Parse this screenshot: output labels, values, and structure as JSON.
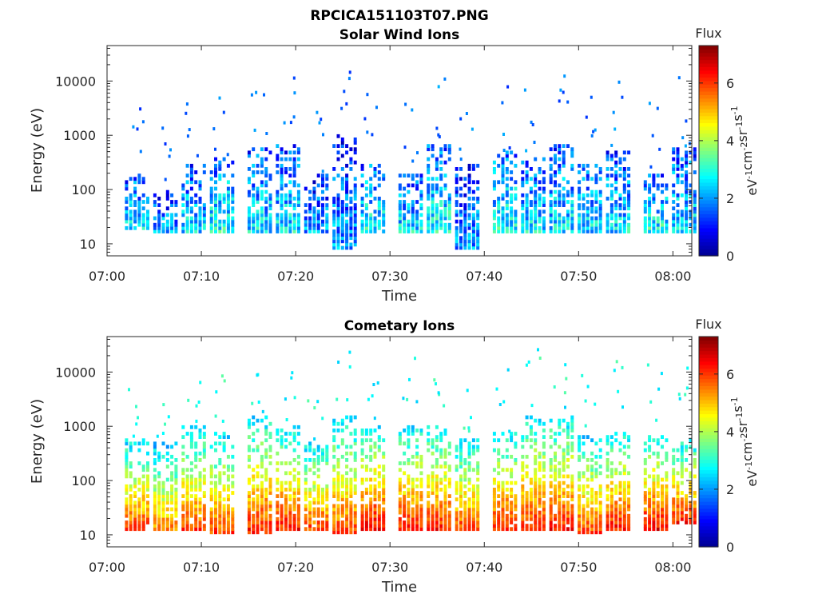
{
  "figure": {
    "title": "RPCICA151103T07.PNG"
  },
  "colorbar": {
    "title": "Flux",
    "unit_base": "eV",
    "ticks": [
      "0",
      "2",
      "4",
      "6"
    ],
    "range": [
      0,
      7.3
    ],
    "colormap": [
      "#00008f",
      "#0000ff",
      "#0080ff",
      "#00ffff",
      "#80ff80",
      "#ffff00",
      "#ff8000",
      "#ff0000",
      "#800000"
    ]
  },
  "chart_data": [
    {
      "type": "heatmap",
      "title": "Solar Wind Ions",
      "xlabel": "Time",
      "ylabel": "Energy (eV)",
      "x_ticks": [
        "07:00",
        "07:10",
        "07:20",
        "07:30",
        "07:40",
        "07:50",
        "08:00"
      ],
      "xlim": [
        "07:00",
        "08:02"
      ],
      "y_scale": "log",
      "y_ticks": [
        10,
        100,
        1000,
        10000
      ],
      "y_tick_labels": [
        "10",
        "100",
        "1000",
        "10000"
      ],
      "ylim": [
        6,
        45000
      ],
      "grid": false,
      "bursts": [
        {
          "t": "07:03",
          "emin": 18,
          "emax": 200,
          "flux": 3.5
        },
        {
          "t": "07:06",
          "emin": 15,
          "emax": 100,
          "flux": 3.0
        },
        {
          "t": "07:09",
          "emin": 15,
          "emax": 300,
          "flux": 3.5
        },
        {
          "t": "07:12",
          "emin": 15,
          "emax": 400,
          "flux": 3.8
        },
        {
          "t": "07:16",
          "emin": 15,
          "emax": 600,
          "flux": 3.5
        },
        {
          "t": "07:19",
          "emin": 15,
          "emax": 700,
          "flux": 3.5
        },
        {
          "t": "07:22",
          "emin": 15,
          "emax": 200,
          "flux": 3.0
        },
        {
          "t": "07:25",
          "emin": 8,
          "emax": 1000,
          "flux": 3.0
        },
        {
          "t": "07:28",
          "emin": 15,
          "emax": 300,
          "flux": 3.8
        },
        {
          "t": "07:32",
          "emin": 15,
          "emax": 200,
          "flux": 3.5
        },
        {
          "t": "07:35",
          "emin": 15,
          "emax": 800,
          "flux": 3.8
        },
        {
          "t": "07:38",
          "emin": 8,
          "emax": 300,
          "flux": 3.0
        },
        {
          "t": "07:42",
          "emin": 15,
          "emax": 500,
          "flux": 3.8
        },
        {
          "t": "07:45",
          "emin": 15,
          "emax": 400,
          "flux": 3.5
        },
        {
          "t": "07:48",
          "emin": 15,
          "emax": 700,
          "flux": 3.5
        },
        {
          "t": "07:51",
          "emin": 15,
          "emax": 300,
          "flux": 3.5
        },
        {
          "t": "07:54",
          "emin": 15,
          "emax": 500,
          "flux": 3.5
        },
        {
          "t": "07:58",
          "emin": 15,
          "emax": 200,
          "flux": 3.8
        },
        {
          "t": "08:01",
          "emin": 15,
          "emax": 600,
          "flux": 3.5
        }
      ]
    },
    {
      "type": "heatmap",
      "title": "Cometary Ions",
      "xlabel": "Time",
      "ylabel": "Energy (eV)",
      "x_ticks": [
        "07:00",
        "07:10",
        "07:20",
        "07:30",
        "07:40",
        "07:50",
        "08:00"
      ],
      "xlim": [
        "07:00",
        "08:02"
      ],
      "y_scale": "log",
      "y_ticks": [
        10,
        100,
        1000,
        10000
      ],
      "y_tick_labels": [
        "10",
        "100",
        "1000",
        "10000"
      ],
      "ylim": [
        6,
        45000
      ],
      "grid": false,
      "bursts": [
        {
          "t": "07:03",
          "emin": 12,
          "emax": 600,
          "flux": 6.5
        },
        {
          "t": "07:06",
          "emin": 12,
          "emax": 500,
          "flux": 6.0
        },
        {
          "t": "07:09",
          "emin": 12,
          "emax": 1000,
          "flux": 6.5
        },
        {
          "t": "07:12",
          "emin": 10,
          "emax": 800,
          "flux": 6.5
        },
        {
          "t": "07:16",
          "emin": 10,
          "emax": 1500,
          "flux": 6.8
        },
        {
          "t": "07:19",
          "emin": 12,
          "emax": 1000,
          "flux": 6.8
        },
        {
          "t": "07:22",
          "emin": 12,
          "emax": 500,
          "flux": 6.5
        },
        {
          "t": "07:25",
          "emin": 10,
          "emax": 1500,
          "flux": 6.5
        },
        {
          "t": "07:28",
          "emin": 12,
          "emax": 1000,
          "flux": 7.0
        },
        {
          "t": "07:32",
          "emin": 12,
          "emax": 1000,
          "flux": 6.8
        },
        {
          "t": "07:35",
          "emin": 12,
          "emax": 1000,
          "flux": 6.8
        },
        {
          "t": "07:38",
          "emin": 12,
          "emax": 600,
          "flux": 6.5
        },
        {
          "t": "07:42",
          "emin": 12,
          "emax": 800,
          "flux": 6.8
        },
        {
          "t": "07:45",
          "emin": 12,
          "emax": 1500,
          "flux": 6.8
        },
        {
          "t": "07:48",
          "emin": 12,
          "emax": 1500,
          "flux": 6.8
        },
        {
          "t": "07:51",
          "emin": 10,
          "emax": 700,
          "flux": 6.5
        },
        {
          "t": "07:54",
          "emin": 12,
          "emax": 800,
          "flux": 6.8
        },
        {
          "t": "07:58",
          "emin": 12,
          "emax": 700,
          "flux": 7.0
        },
        {
          "t": "08:01",
          "emin": 15,
          "emax": 600,
          "flux": 6.8
        }
      ]
    }
  ]
}
